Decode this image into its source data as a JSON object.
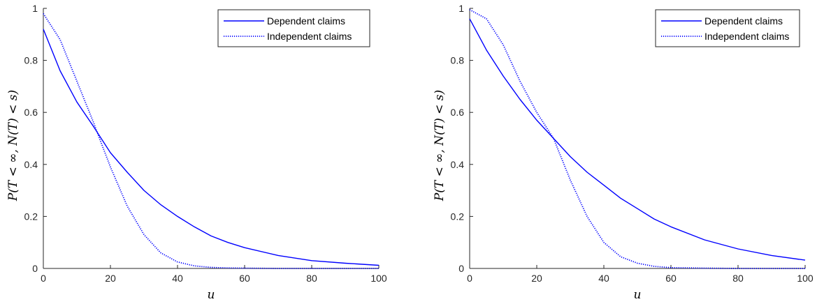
{
  "chart_data": [
    {
      "type": "line",
      "xlabel": "u",
      "ylabel": "P(T < ∞, N(T) < s)",
      "xlim": [
        0,
        100
      ],
      "ylim": [
        0,
        1
      ],
      "xticks": [
        "0",
        "20",
        "40",
        "60",
        "80",
        "100"
      ],
      "yticks": [
        "0",
        "0.2",
        "0.4",
        "0.6",
        "0.8",
        "1"
      ],
      "grid": false,
      "legend": "top-right",
      "color": "#0000ff",
      "x": [
        0,
        5,
        10,
        15,
        16,
        20,
        25,
        30,
        35,
        40,
        45,
        50,
        55,
        60,
        70,
        80,
        90,
        100
      ],
      "series": [
        {
          "name": "Dependent claims",
          "style": "solid",
          "values": [
            0.92,
            0.76,
            0.64,
            0.545,
            0.525,
            0.445,
            0.37,
            0.3,
            0.245,
            0.2,
            0.16,
            0.125,
            0.1,
            0.08,
            0.05,
            0.03,
            0.02,
            0.012
          ]
        },
        {
          "name": "Independent claims",
          "style": "dotted",
          "values": [
            0.98,
            0.88,
            0.72,
            0.56,
            0.525,
            0.39,
            0.24,
            0.13,
            0.06,
            0.025,
            0.01,
            0.004,
            0.002,
            0.001,
            0.0,
            0.0,
            0.0,
            0.0
          ]
        }
      ]
    },
    {
      "type": "line",
      "xlabel": "u",
      "ylabel": "P(T < ∞, N(T) < s)",
      "xlim": [
        0,
        100
      ],
      "ylim": [
        0,
        1
      ],
      "xticks": [
        "0",
        "20",
        "40",
        "60",
        "80",
        "100"
      ],
      "yticks": [
        "0",
        "0.2",
        "0.4",
        "0.6",
        "0.8",
        "1"
      ],
      "grid": false,
      "legend": "top-right",
      "color": "#0000ff",
      "x": [
        0,
        5,
        10,
        15,
        20,
        25,
        30,
        35,
        40,
        45,
        50,
        55,
        60,
        70,
        80,
        90,
        100
      ],
      "series": [
        {
          "name": "Dependent claims",
          "style": "solid",
          "values": [
            0.96,
            0.84,
            0.74,
            0.65,
            0.57,
            0.5,
            0.43,
            0.37,
            0.32,
            0.27,
            0.23,
            0.19,
            0.16,
            0.11,
            0.075,
            0.05,
            0.032
          ]
        },
        {
          "name": "Independent claims",
          "style": "dotted",
          "values": [
            0.995,
            0.96,
            0.86,
            0.72,
            0.6,
            0.5,
            0.34,
            0.2,
            0.1,
            0.045,
            0.02,
            0.008,
            0.003,
            0.001,
            0.0,
            0.0,
            0.0
          ]
        }
      ]
    }
  ]
}
